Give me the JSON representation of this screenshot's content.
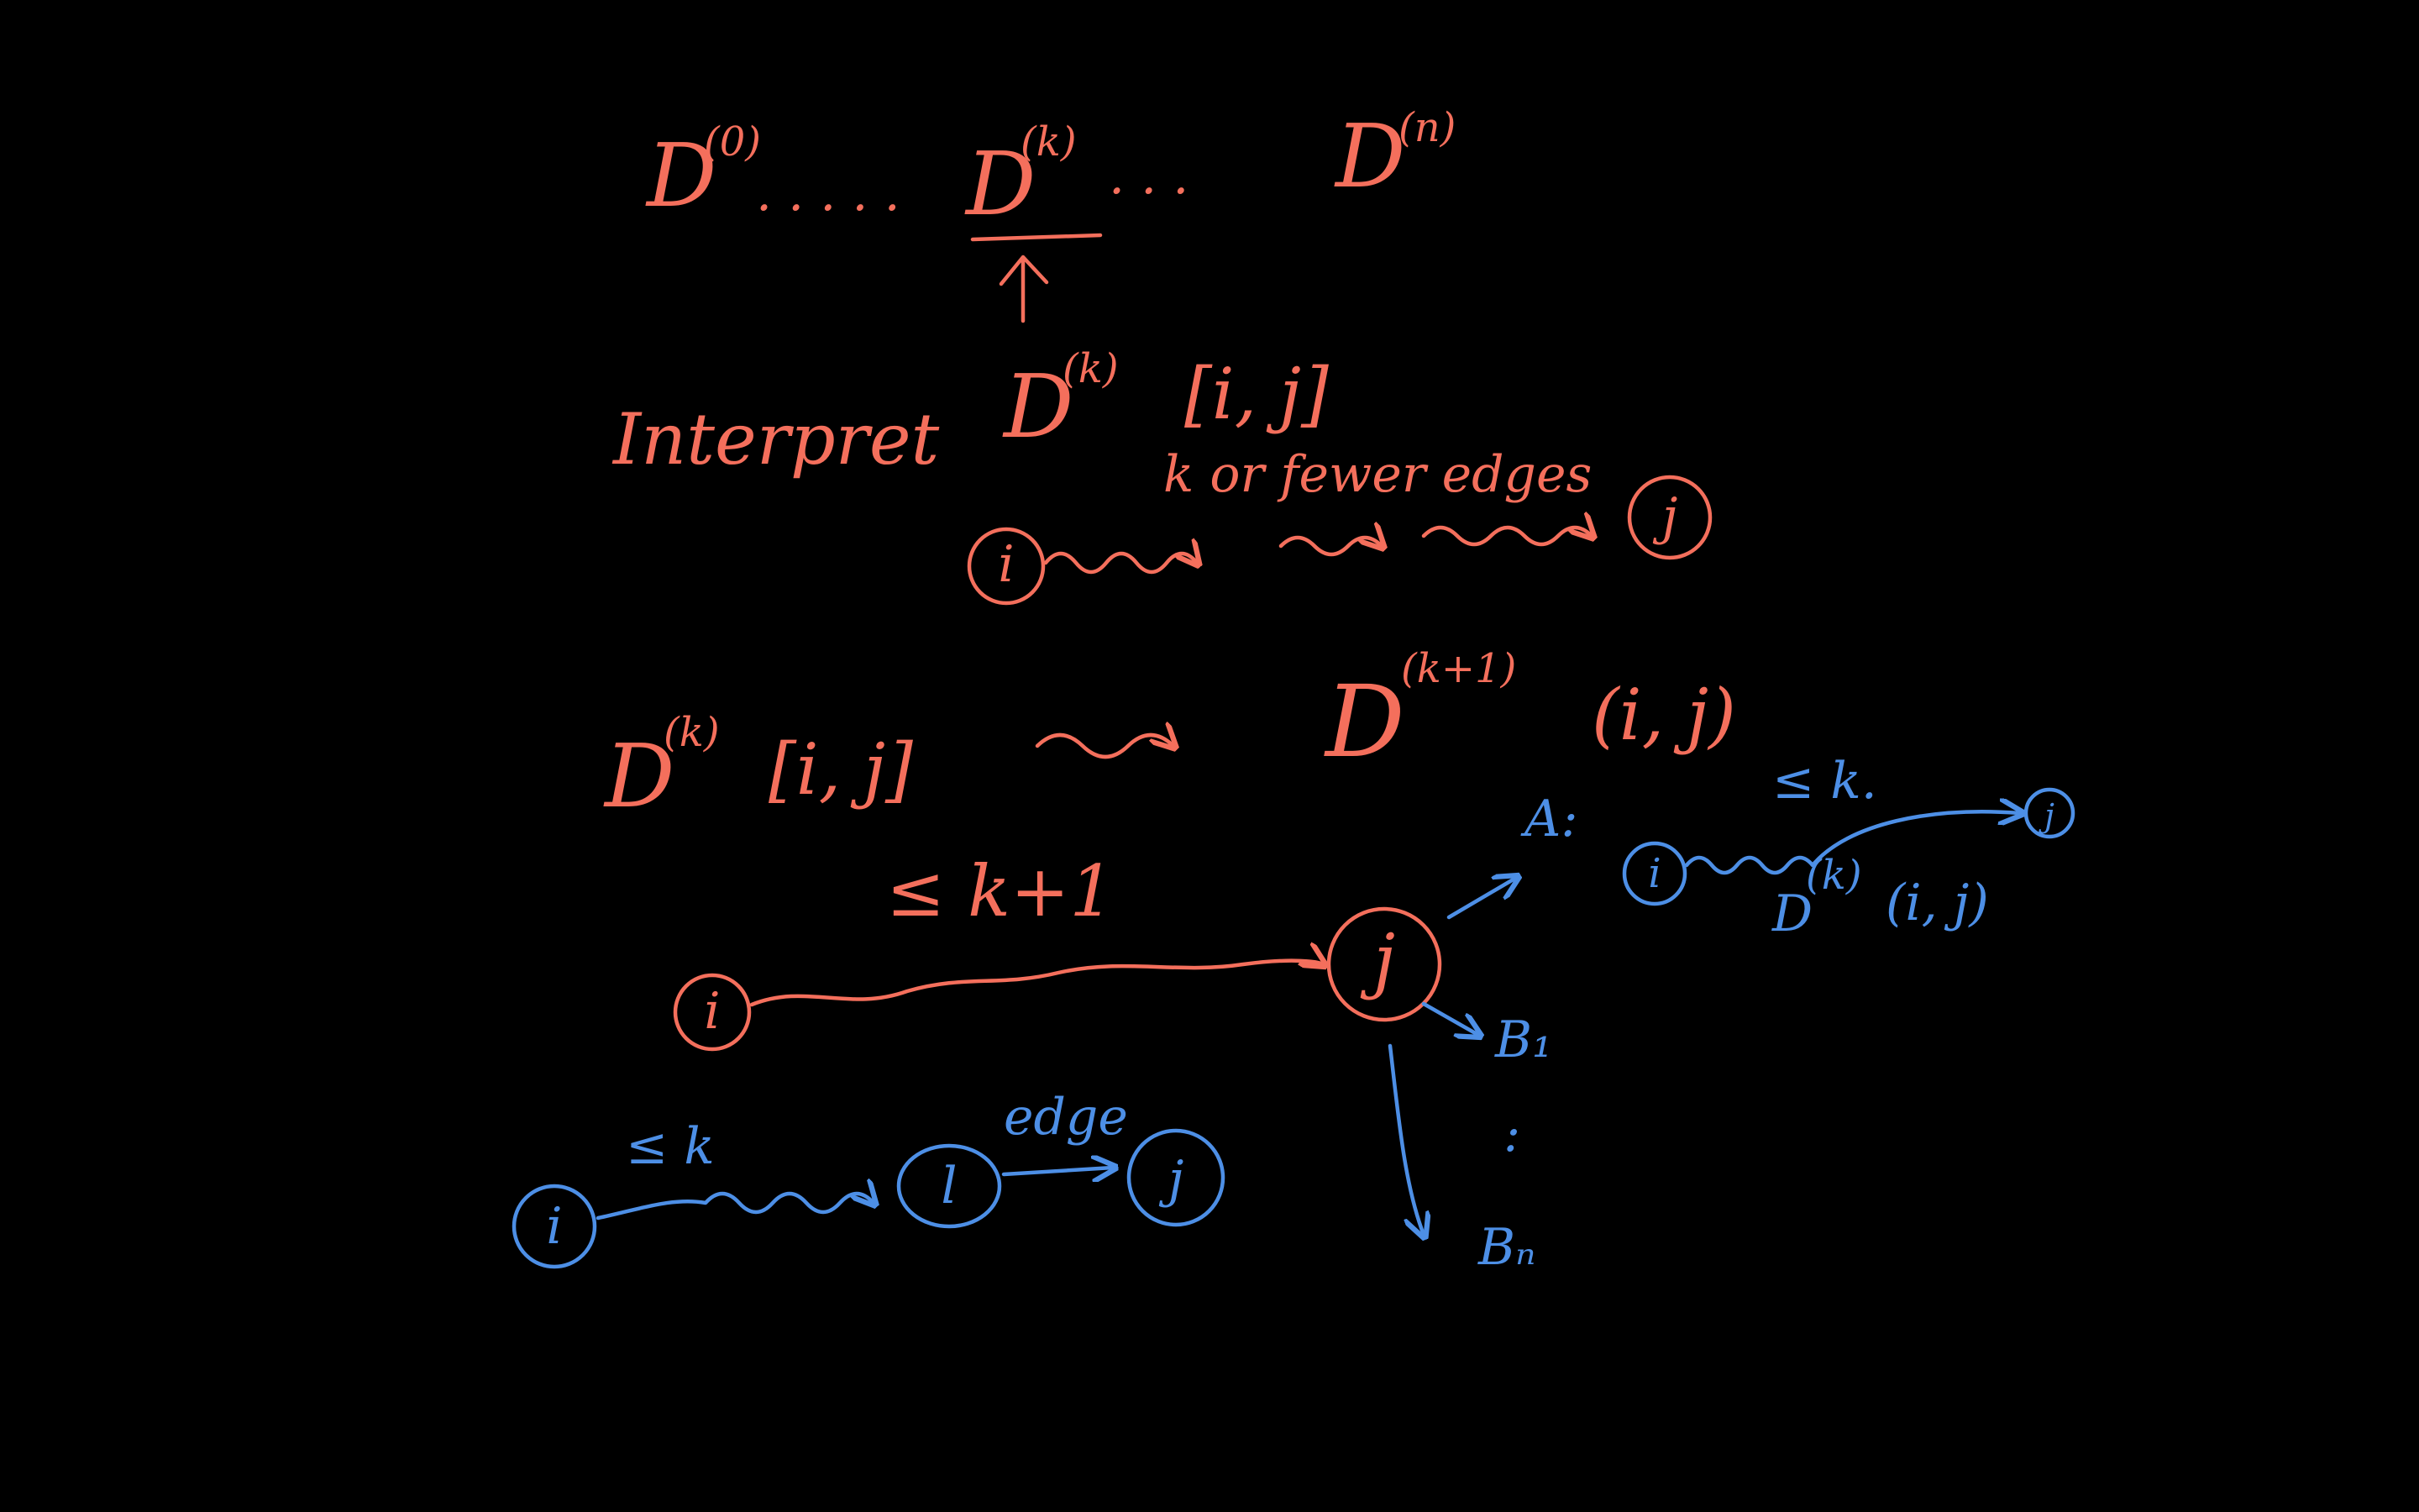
{
  "colors": {
    "background": "#000000",
    "ink_red": "#f46f5c",
    "ink_blue": "#4d8fe6"
  },
  "sequence": {
    "base": "D",
    "first_sup": "(0)",
    "middle_sup": "(k)",
    "last_sup": "(n)",
    "dots": ". . . . .",
    "dots_short": ". . ."
  },
  "interpret": {
    "word": "Interpret",
    "base": "D",
    "sup": "(k)",
    "index": "[i, j]",
    "path_label": "k or fewer edges",
    "node_start": "i",
    "node_end": "j"
  },
  "transition": {
    "left_base": "D",
    "left_sup": "(k)",
    "left_index": "[i, j]",
    "right_base": "D",
    "right_sup": "(k+1)",
    "right_index": "(i, j)"
  },
  "red_path": {
    "label": "≤ k+1",
    "node_start": "i",
    "node_end": "j"
  },
  "branches": {
    "a_label": "A:",
    "b1_label": "B₁",
    "vdots": ":",
    "bn_label": "Bₙ"
  },
  "case_a": {
    "label": "≤ k.",
    "node_start": "i",
    "node_end": "j",
    "value_base": "D",
    "value_sup": "(k)",
    "value_index": "(i, j)"
  },
  "case_b": {
    "path_label": "≤ k",
    "edge_label": "edge",
    "node_start": "i",
    "node_mid": "l",
    "node_end": "j"
  }
}
